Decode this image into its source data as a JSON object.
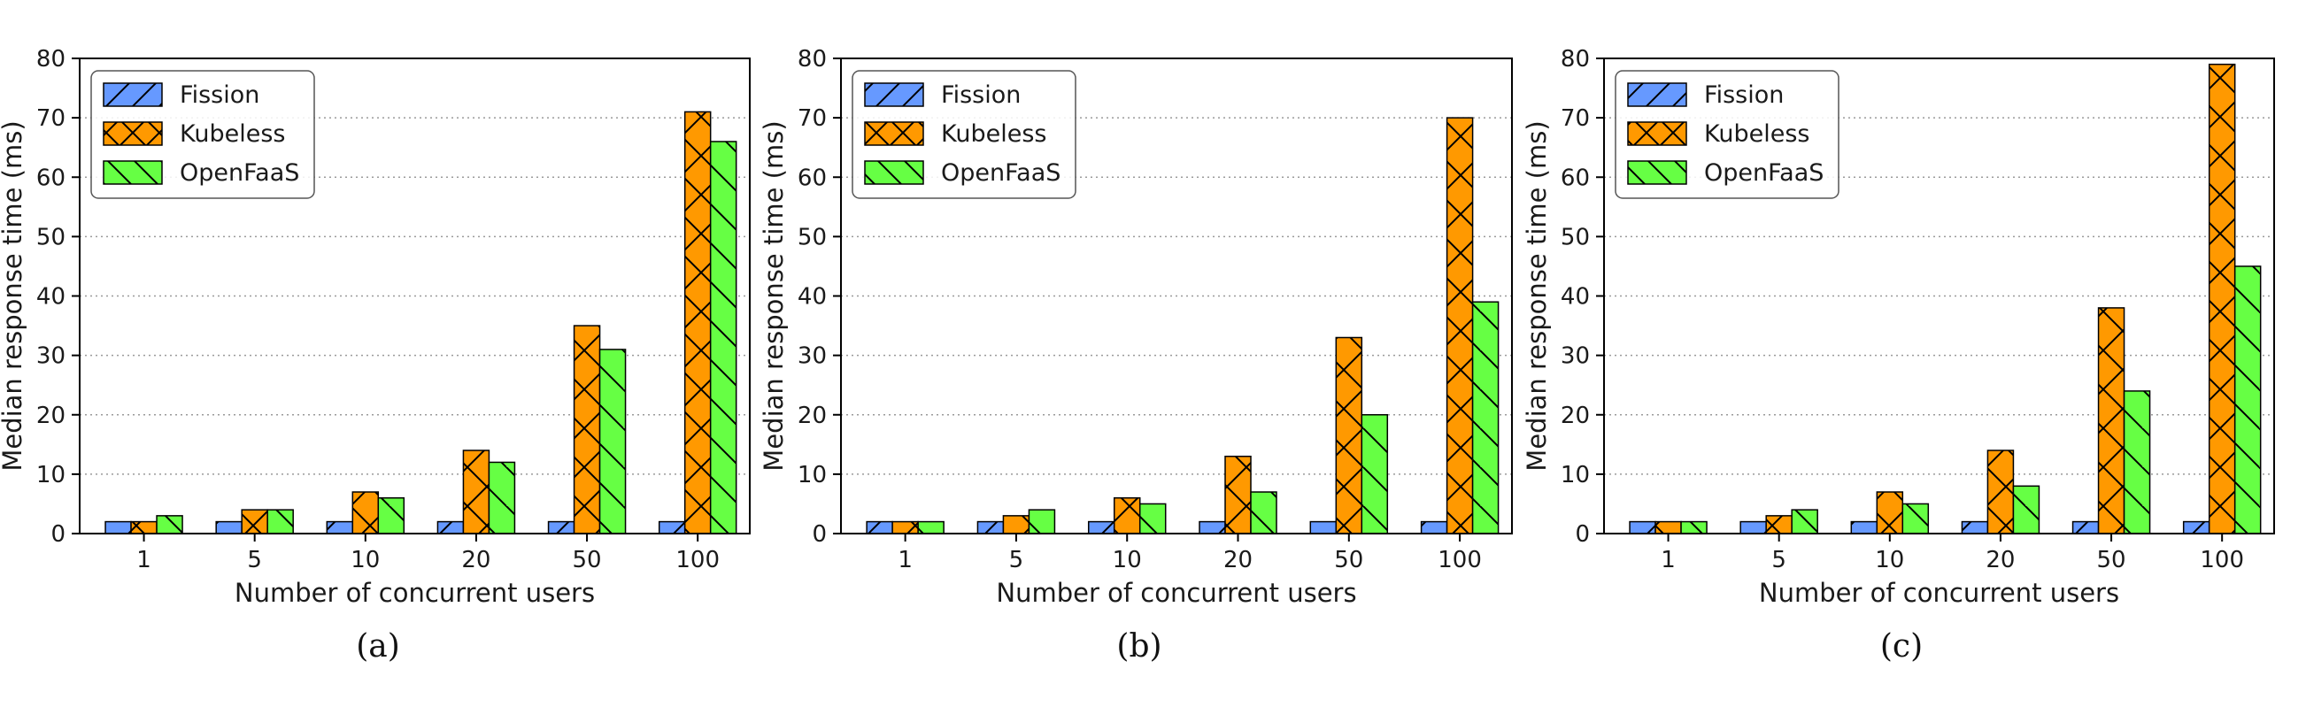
{
  "colors": {
    "fission": "#6699ff",
    "kubeless": "#ff9900",
    "openfaas": "#66ff44",
    "grid": "#9a9a9a",
    "edge": "#000000"
  },
  "chart_data": [
    {
      "type": "bar",
      "caption": "(a)",
      "categories": [
        "1",
        "5",
        "10",
        "20",
        "50",
        "100"
      ],
      "xlabel": "Number of concurrent users",
      "ylabel": "Median response time (ms)",
      "ylim": [
        0,
        80
      ],
      "yticks": [
        0,
        10,
        20,
        30,
        40,
        50,
        60,
        70,
        80
      ],
      "grid": "horizontal dotted",
      "legend": "top-left",
      "series": [
        {
          "name": "Fission",
          "hatch": "/",
          "values": [
            2,
            2,
            2,
            2,
            2,
            2
          ]
        },
        {
          "name": "Kubeless",
          "hatch": "x",
          "values": [
            2,
            4,
            7,
            14,
            35,
            71
          ]
        },
        {
          "name": "OpenFaaS",
          "hatch": "\\",
          "values": [
            3,
            4,
            6,
            12,
            31,
            66
          ]
        }
      ]
    },
    {
      "type": "bar",
      "caption": "(b)",
      "categories": [
        "1",
        "5",
        "10",
        "20",
        "50",
        "100"
      ],
      "xlabel": "Number of concurrent users",
      "ylabel": "Median response time (ms)",
      "ylim": [
        0,
        80
      ],
      "yticks": [
        0,
        10,
        20,
        30,
        40,
        50,
        60,
        70,
        80
      ],
      "grid": "horizontal dotted",
      "legend": "top-left",
      "series": [
        {
          "name": "Fission",
          "hatch": "/",
          "values": [
            2,
            2,
            2,
            2,
            2,
            2
          ]
        },
        {
          "name": "Kubeless",
          "hatch": "x",
          "values": [
            2,
            3,
            6,
            13,
            33,
            70
          ]
        },
        {
          "name": "OpenFaaS",
          "hatch": "\\",
          "values": [
            2,
            4,
            5,
            7,
            20,
            39
          ]
        }
      ]
    },
    {
      "type": "bar",
      "caption": "(c)",
      "categories": [
        "1",
        "5",
        "10",
        "20",
        "50",
        "100"
      ],
      "xlabel": "Number of concurrent users",
      "ylabel": "Median response time (ms)",
      "ylim": [
        0,
        80
      ],
      "yticks": [
        0,
        10,
        20,
        30,
        40,
        50,
        60,
        70,
        80
      ],
      "grid": "horizontal dotted",
      "legend": "top-left",
      "series": [
        {
          "name": "Fission",
          "hatch": "/",
          "values": [
            2,
            2,
            2,
            2,
            2,
            2
          ]
        },
        {
          "name": "Kubeless",
          "hatch": "x",
          "values": [
            2,
            3,
            7,
            14,
            38,
            79
          ]
        },
        {
          "name": "OpenFaaS",
          "hatch": "\\",
          "values": [
            2,
            4,
            5,
            8,
            24,
            45
          ]
        }
      ]
    }
  ]
}
